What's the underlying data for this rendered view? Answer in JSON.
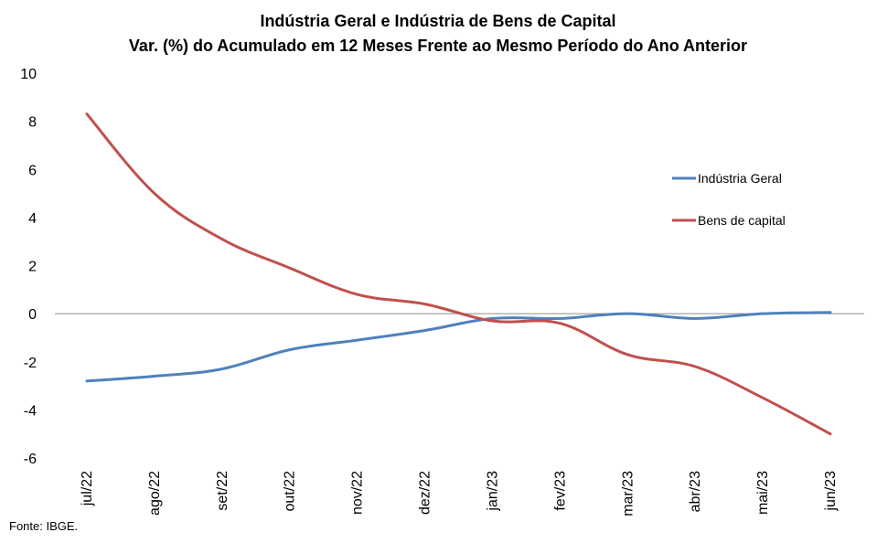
{
  "chart_data": {
    "type": "line",
    "title": "Indústria  Geral e Indústria  de Bens de Capital",
    "subtitle": "Var. (%) do Acumulado em 12 Meses Frente ao Mesmo Período do Ano Anterior",
    "xlabel": "",
    "ylabel": "",
    "categories": [
      "jul/22",
      "ago/22",
      "set/22",
      "out/22",
      "nov/22",
      "dez/22",
      "jan/23",
      "fev/23",
      "mar/23",
      "abr/23",
      "mai/23",
      "jun/23"
    ],
    "y_ticks": [
      "10",
      "8",
      "6",
      "4",
      "2",
      "0",
      "-2",
      "-4",
      "-6"
    ],
    "ylim": [
      -6,
      10
    ],
    "grid": false,
    "zero_line": true,
    "legend_position": "right",
    "series": [
      {
        "name": "Indústria Geral",
        "color": "#4f81bd",
        "values": [
          -2.8,
          -2.6,
          -2.3,
          -1.5,
          -1.1,
          -0.7,
          -0.2,
          -0.2,
          0.0,
          -0.2,
          0.0,
          0.05
        ]
      },
      {
        "name": "Bens de capital",
        "color": "#c0504d",
        "values": [
          8.3,
          5.0,
          3.1,
          1.9,
          0.8,
          0.4,
          -0.3,
          -0.4,
          -1.7,
          -2.2,
          -3.5,
          -5.0
        ]
      }
    ],
    "source": "Fonte: IBGE."
  }
}
